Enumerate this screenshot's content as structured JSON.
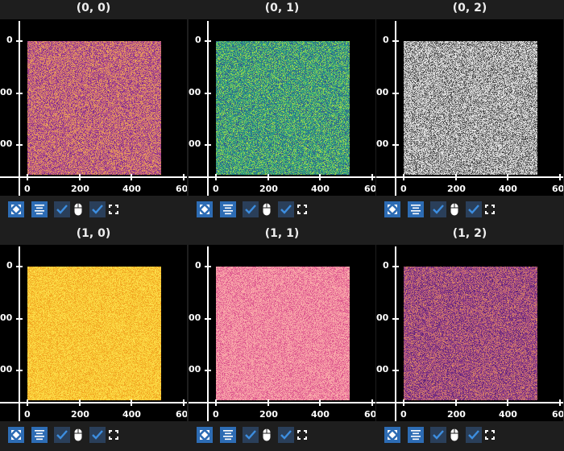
{
  "subplots": [
    {
      "title": "(0, 0)",
      "colors": [
        "#7a2a8c",
        "#b54e8a",
        "#d47a6a",
        "#eba658"
      ]
    },
    {
      "title": "(0, 1)",
      "colors": [
        "#3b528b",
        "#21918c",
        "#4fb56a",
        "#a8d84a"
      ]
    },
    {
      "title": "(0, 2)",
      "colors": [
        "#3a3a3a",
        "#8a8a8a",
        "#c8c8c8",
        "#f0f0f0"
      ]
    },
    {
      "title": "(1, 0)",
      "colors": [
        "#f0a020",
        "#f6be2e",
        "#fad23c",
        "#fde050"
      ]
    },
    {
      "title": "(1, 1)",
      "colors": [
        "#d8508a",
        "#ec7a9c",
        "#f598a4",
        "#fab0ac"
      ]
    },
    {
      "title": "(1, 2)",
      "colors": [
        "#5a2278",
        "#8e3c86",
        "#b85a7a",
        "#d88a62"
      ]
    }
  ],
  "axes": {
    "x_ticks": [
      "0",
      "200",
      "400",
      "60"
    ],
    "y_ticks": [
      "0",
      "00",
      "00"
    ]
  },
  "toolbar": {
    "autoscale_icon": "autoscale-icon",
    "center_icon": "center-icon",
    "mouse_checkbox_checked": true,
    "mouse_icon": "mouse-icon",
    "maintain_aspect_checked": true,
    "fullscreen_icon": "fullscreen-icon"
  },
  "accent": "#2d6cb4"
}
